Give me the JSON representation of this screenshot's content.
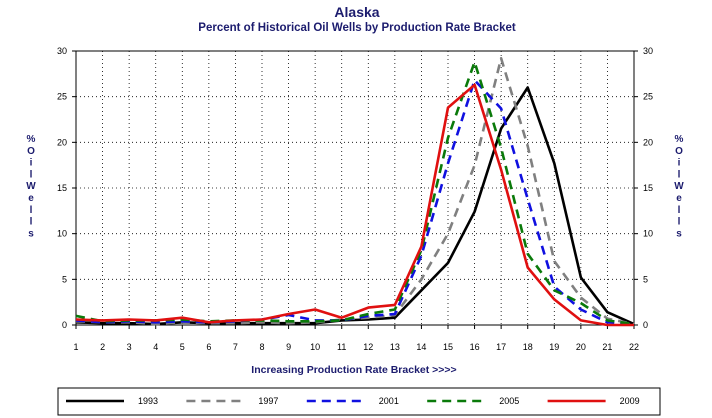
{
  "chart_data": {
    "type": "line",
    "title": "Alaska",
    "subtitle": "Percent of Historical Oil Wells by Production Rate Bracket",
    "xlabel": "Increasing Production Rate Bracket >>>>",
    "ylabel_left": [
      "%",
      "O",
      "i",
      "l",
      "W",
      "e",
      "l",
      "l",
      "s"
    ],
    "ylabel_right": [
      "%",
      "O",
      "i",
      "l",
      "W",
      "e",
      "l",
      "l",
      "s"
    ],
    "x": [
      1,
      2,
      3,
      4,
      5,
      6,
      7,
      8,
      9,
      10,
      11,
      12,
      13,
      14,
      15,
      16,
      17,
      18,
      19,
      20,
      21,
      22
    ],
    "xlim": [
      1,
      22
    ],
    "ylim": [
      0,
      30
    ],
    "yticks": [
      0,
      5,
      10,
      15,
      20,
      25,
      30
    ],
    "grid": true,
    "legend_position": "bottom",
    "series": [
      {
        "name": "1993",
        "color": "#000000",
        "dash": "solid",
        "values": [
          0.3,
          0.2,
          0.2,
          0.1,
          0.3,
          0.2,
          0.2,
          0.2,
          0.2,
          0.2,
          0.5,
          0.6,
          0.8,
          3.8,
          6.8,
          12.4,
          21.5,
          26.0,
          17.7,
          5.2,
          1.4,
          0.1
        ]
      },
      {
        "name": "1997",
        "color": "#808080",
        "dash": "dashed",
        "values": [
          0.4,
          0.3,
          0.3,
          0.1,
          0.3,
          0.2,
          0.2,
          0.3,
          0.2,
          0.3,
          0.6,
          0.8,
          1.1,
          5.0,
          10.0,
          17.5,
          29.2,
          19.6,
          7.0,
          3.0,
          0.7,
          0.1
        ]
      },
      {
        "name": "2001",
        "color": "#1010e0",
        "dash": "dashed",
        "values": [
          0.5,
          0.3,
          0.4,
          0.3,
          0.4,
          0.3,
          0.4,
          0.6,
          1.1,
          0.5,
          0.5,
          1.0,
          1.2,
          7.6,
          17.7,
          26.8,
          23.7,
          13.8,
          4.2,
          1.7,
          0.3,
          0.1
        ]
      },
      {
        "name": "2005",
        "color": "#0a7a0a",
        "dash": "dashed",
        "values": [
          1.0,
          0.4,
          0.5,
          0.5,
          0.6,
          0.4,
          0.5,
          0.5,
          0.4,
          0.4,
          0.5,
          1.2,
          1.7,
          8.2,
          20.5,
          28.8,
          19.4,
          7.8,
          3.8,
          2.4,
          0.5,
          0.1
        ]
      },
      {
        "name": "2009",
        "color": "#e01010",
        "dash": "solid",
        "values": [
          0.6,
          0.5,
          0.6,
          0.5,
          0.8,
          0.3,
          0.5,
          0.6,
          1.2,
          1.7,
          0.8,
          1.9,
          2.2,
          8.6,
          23.8,
          26.3,
          17.0,
          6.3,
          2.8,
          0.5,
          0.0,
          0.0
        ]
      }
    ]
  }
}
